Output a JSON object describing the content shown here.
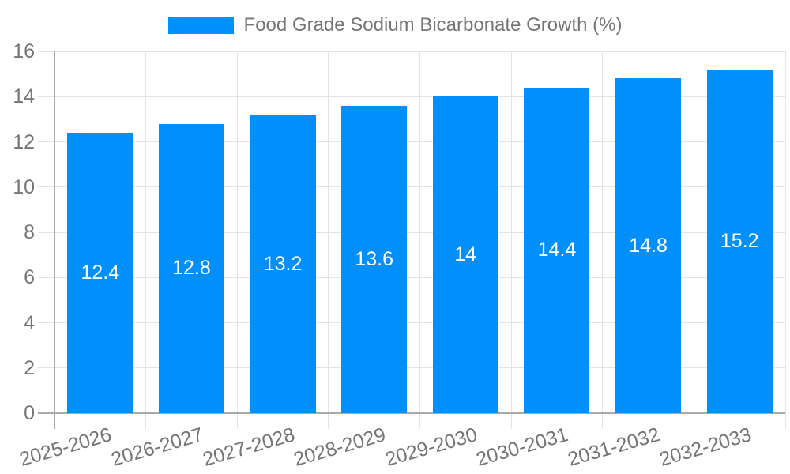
{
  "legend": {
    "label": "Food Grade Sodium Bicarbonate Growth (%)"
  },
  "chart_data": {
    "type": "bar",
    "title": "Food Grade Sodium Bicarbonate Growth (%)",
    "series_name": "Food Grade Sodium Bicarbonate Growth (%)",
    "categories": [
      "2025-2026",
      "2026-2027",
      "2027-2028",
      "2028-2029",
      "2029-2030",
      "2030-2031",
      "2031-2032",
      "2032-2033"
    ],
    "values": [
      12.4,
      12.8,
      13.2,
      13.6,
      14,
      14.4,
      14.8,
      15.2
    ],
    "value_labels": [
      "12.4",
      "12.8",
      "13.2",
      "13.6",
      "14",
      "14.4",
      "14.8",
      "15.2"
    ],
    "xlabel": "",
    "ylabel": "",
    "ylim": [
      0,
      16
    ],
    "y_ticks": [
      0,
      2,
      4,
      6,
      8,
      10,
      12,
      14,
      16
    ],
    "grid": true,
    "legend_position": "top-center",
    "bar_color": "#008FFB",
    "value_label_color": "#ffffff",
    "tick_text_color": "#757575",
    "gridline_color": "#e3e3e3",
    "axis_line_color": "#a9a9a9"
  }
}
